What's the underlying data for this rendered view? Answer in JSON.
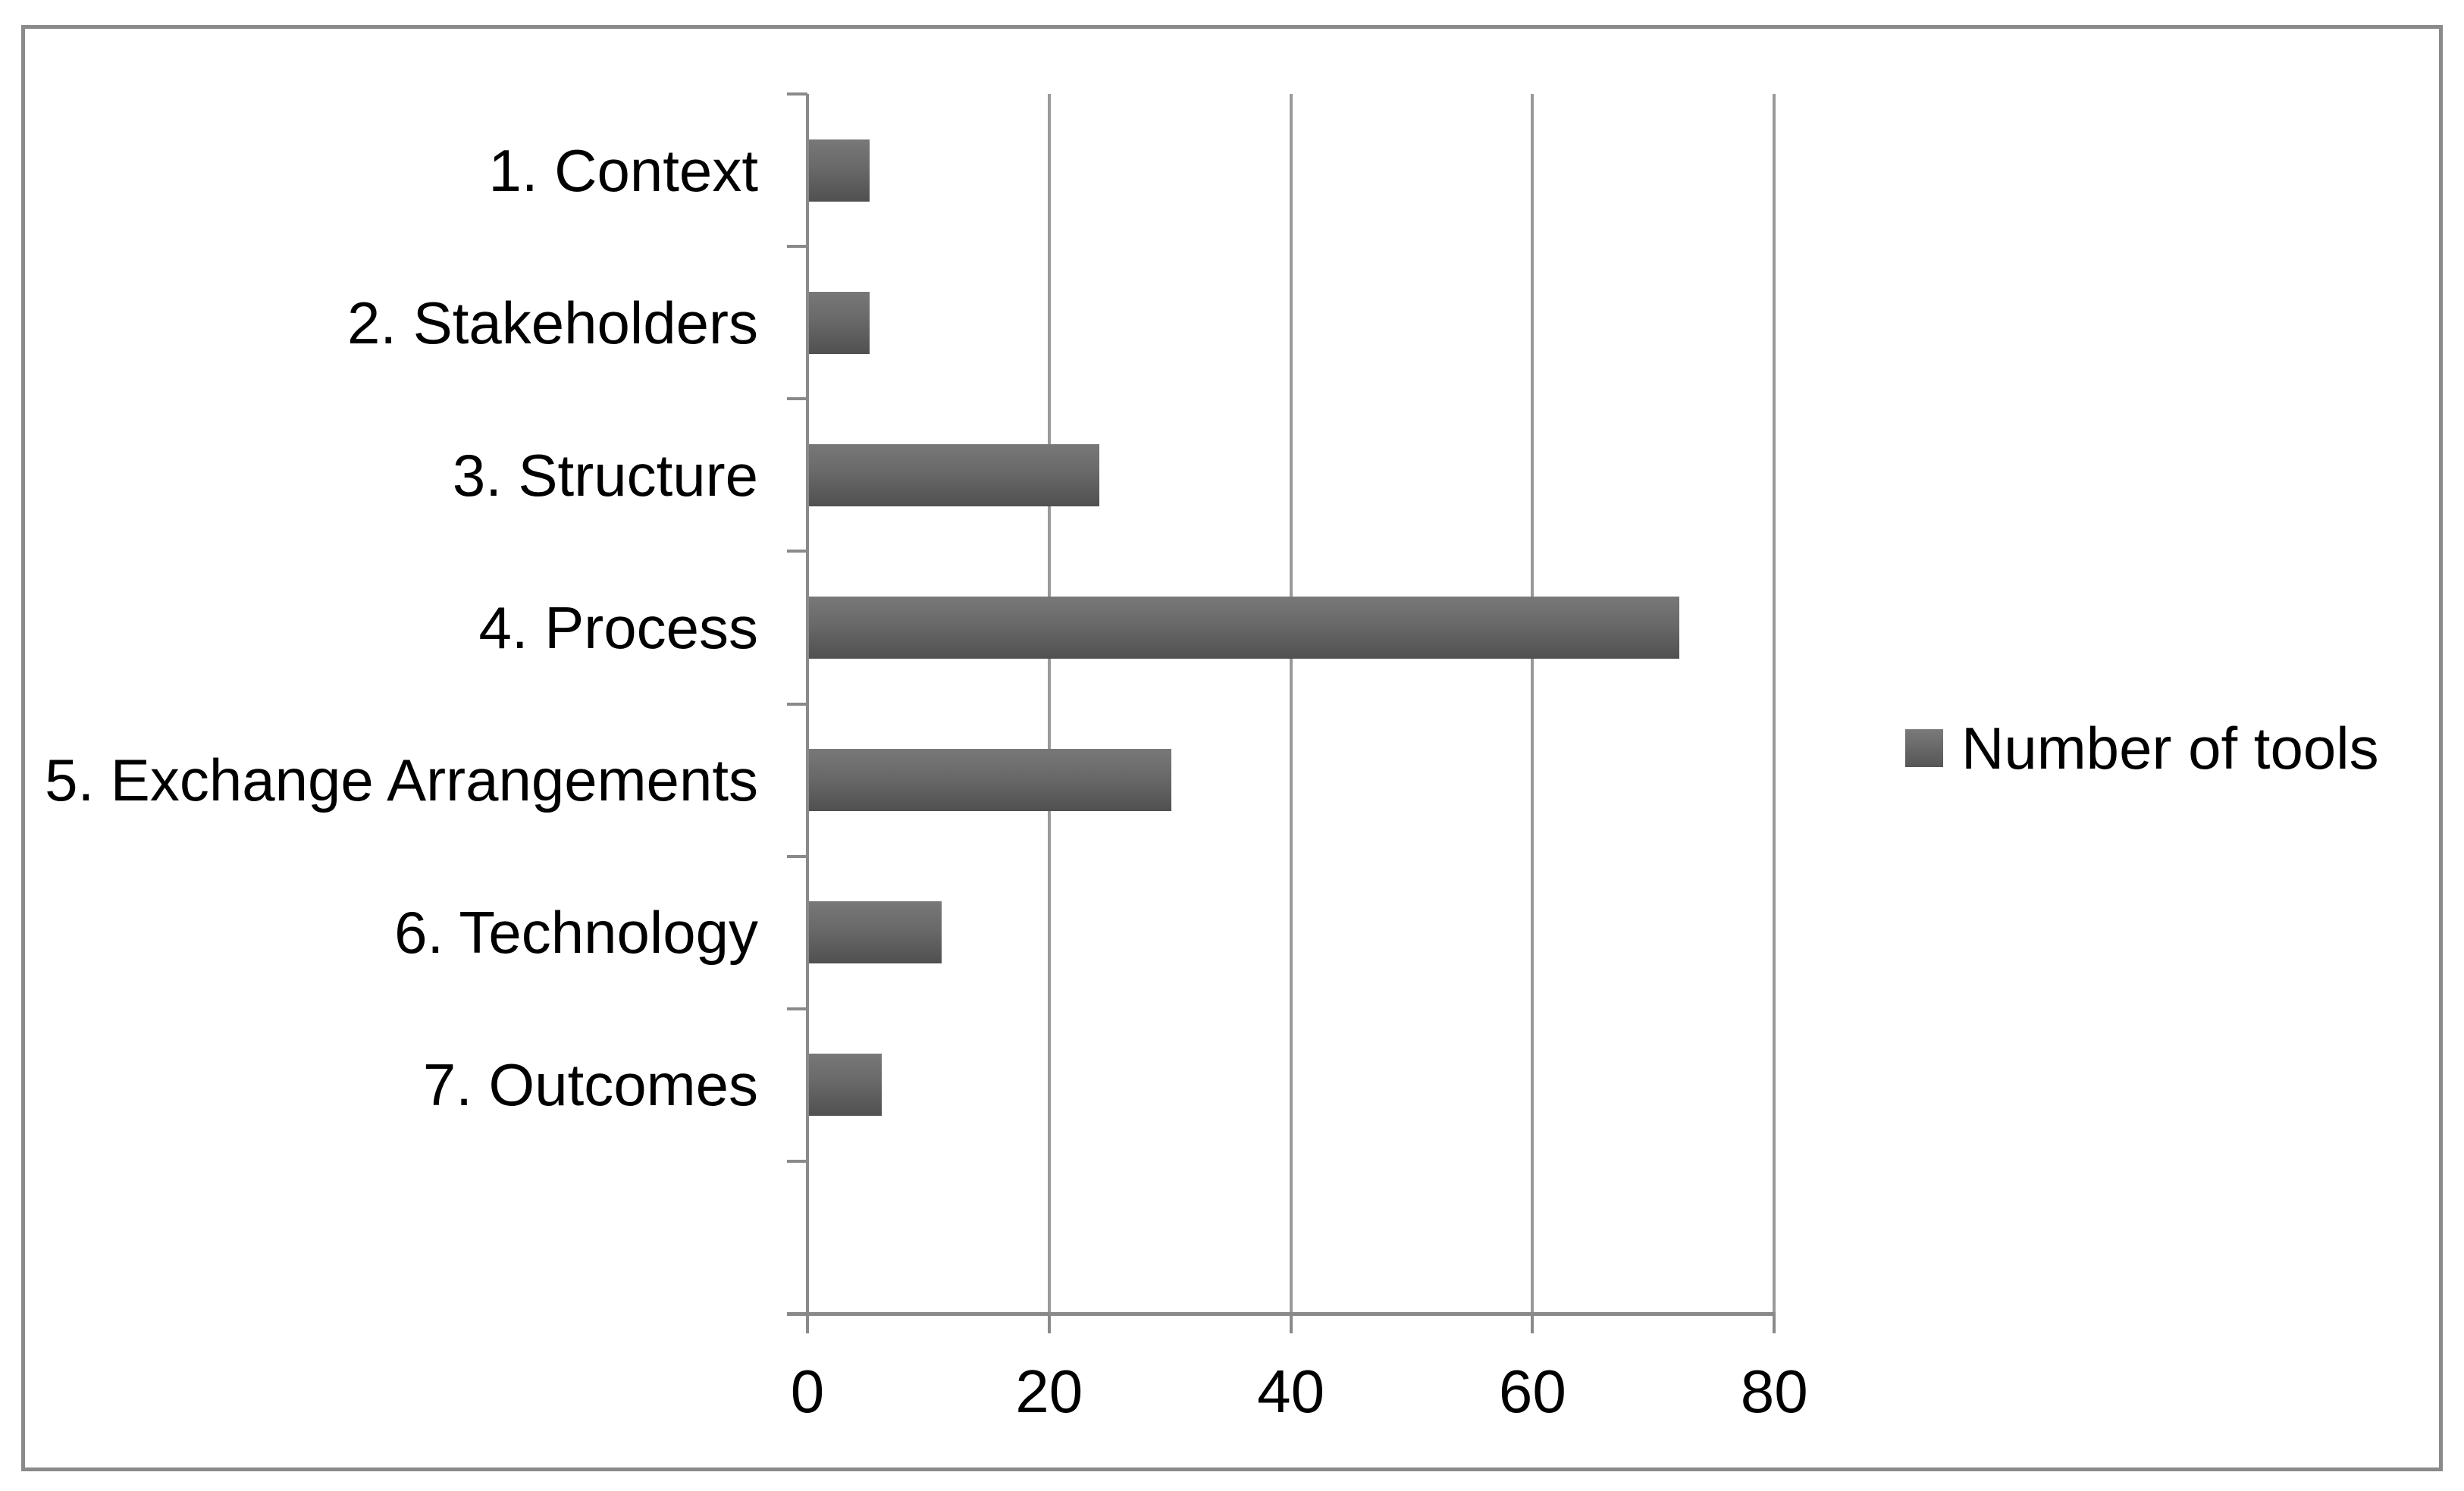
{
  "chart_data": {
    "type": "bar",
    "orientation": "horizontal",
    "title": "",
    "xlabel": "",
    "ylabel": "",
    "categories": [
      "1. Context",
      "2. Stakeholders",
      "3. Structure",
      "4. Process",
      "5. Exchange Arrangements",
      "6. Technology",
      "7. Outcomes"
    ],
    "series": [
      {
        "name": "Number of tools",
        "values": [
          5,
          5,
          24,
          72,
          30,
          11,
          6
        ]
      }
    ],
    "xlim": [
      0,
      80
    ],
    "x_ticks": [
      0,
      20,
      40,
      60,
      80
    ],
    "grid": "vertical-gridlines-on",
    "legend_position": "right",
    "empty_trailing_slot": true
  },
  "legend": {
    "label": "Number of tools"
  },
  "colors": {
    "frame_border": "#8a8a8a",
    "gridline": "#9a9a9a",
    "axis": "#8a8a8a",
    "bar_top": "#787878",
    "bar_bottom": "#505050",
    "text": "#000000",
    "background": "#ffffff"
  }
}
